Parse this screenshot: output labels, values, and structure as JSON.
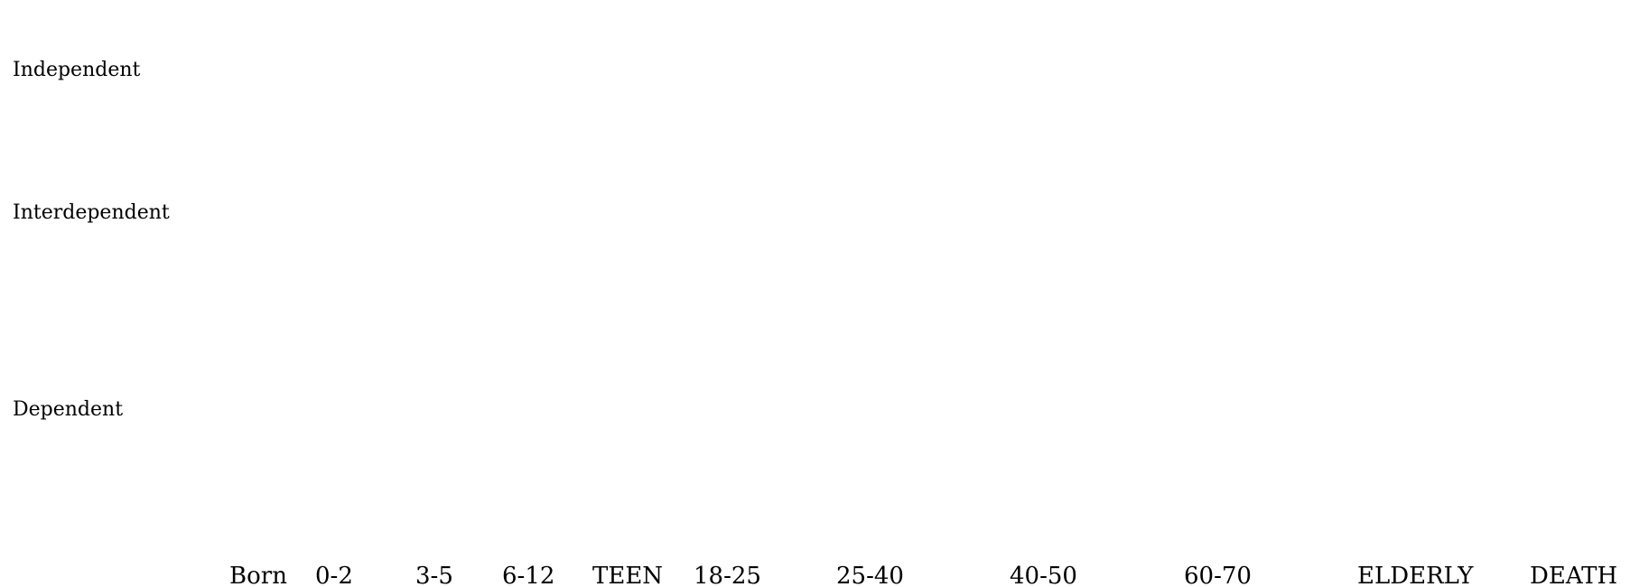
{
  "chart_data": {
    "type": "line",
    "axis_color": "#4f81bd",
    "x_categories": [
      "Born",
      "0-2",
      "3-5",
      "6-12",
      "TEEN",
      "18-25",
      "25-40",
      "40-50",
      "60-70",
      "ELDERLY",
      "DEATH"
    ],
    "y_categories": [
      "Independent",
      "Interdependent",
      "Dependent"
    ],
    "series": [],
    "grid": false
  }
}
